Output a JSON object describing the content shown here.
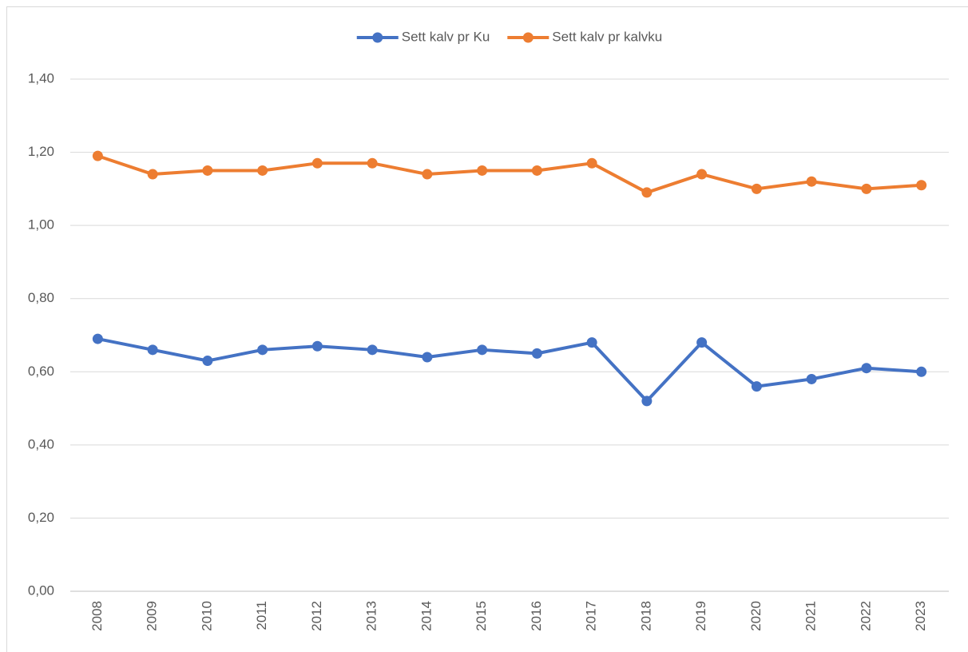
{
  "chart_data": {
    "type": "line",
    "categories": [
      "2008",
      "2009",
      "2010",
      "2011",
      "2012",
      "2013",
      "2014",
      "2015",
      "2016",
      "2017",
      "2018",
      "2019",
      "2020",
      "2021",
      "2022",
      "2023"
    ],
    "series": [
      {
        "name": "Sett kalv pr Ku",
        "color": "#4472c4",
        "values": [
          0.69,
          0.66,
          0.63,
          0.66,
          0.67,
          0.66,
          0.64,
          0.66,
          0.65,
          0.68,
          0.52,
          0.68,
          0.56,
          0.58,
          0.61,
          0.6
        ]
      },
      {
        "name": "Sett kalv pr kalvku",
        "color": "#ed7d31",
        "values": [
          1.19,
          1.14,
          1.15,
          1.15,
          1.17,
          1.17,
          1.14,
          1.15,
          1.15,
          1.17,
          1.09,
          1.14,
          1.1,
          1.12,
          1.1,
          1.11
        ]
      }
    ],
    "ylim": [
      0,
      1.4
    ],
    "yticks": [
      {
        "value": 0,
        "label": "0,00"
      },
      {
        "value": 0.2,
        "label": "0,20"
      },
      {
        "value": 0.4,
        "label": "0,40"
      },
      {
        "value": 0.6,
        "label": "0,60"
      },
      {
        "value": 0.8,
        "label": "0,80"
      },
      {
        "value": 1.0,
        "label": "1,00"
      },
      {
        "value": 1.2,
        "label": "1,20"
      },
      {
        "value": 1.4,
        "label": "1,40"
      }
    ],
    "grid": true,
    "legend": "top"
  }
}
